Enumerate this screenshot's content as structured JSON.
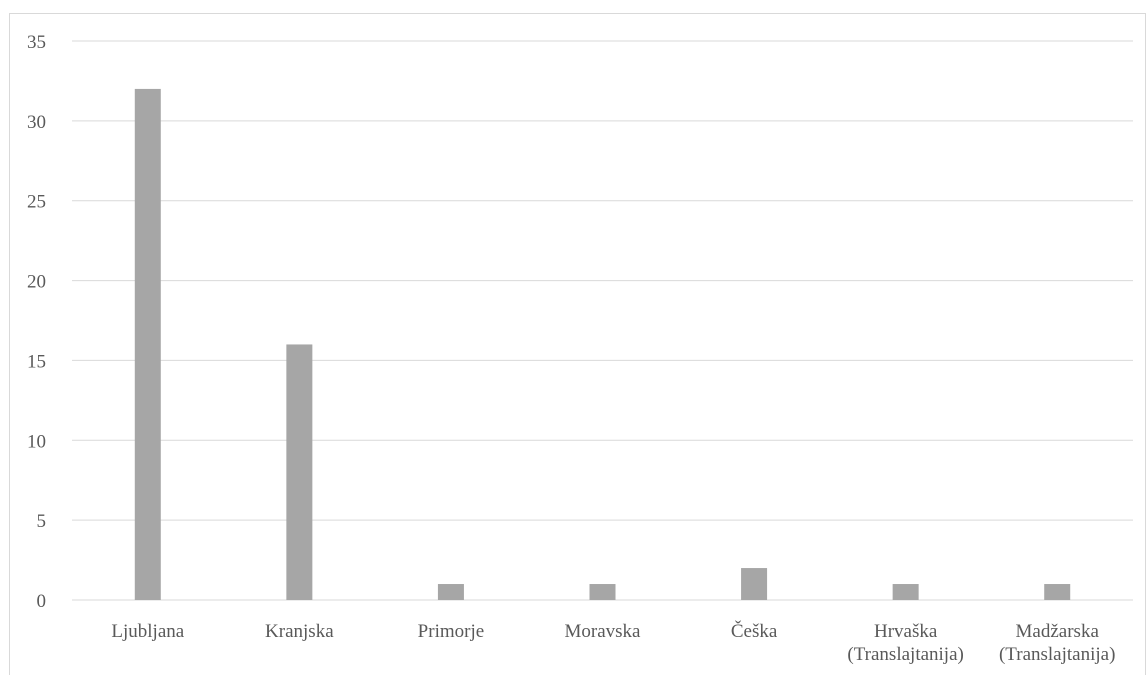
{
  "chart_data": {
    "type": "bar",
    "title": "",
    "xlabel": "",
    "ylabel": "",
    "categories": [
      [
        "Ljubljana"
      ],
      [
        "Kranjska"
      ],
      [
        "Primorje"
      ],
      [
        "Moravska"
      ],
      [
        "Češka"
      ],
      [
        "Hrvaška",
        "(Translajtanija)"
      ],
      [
        "Madžarska",
        "(Translajtanija)"
      ]
    ],
    "values": [
      32,
      16,
      1,
      1,
      2,
      1,
      1
    ],
    "ylim": [
      0,
      35
    ],
    "yticks": [
      "0",
      "5",
      "10",
      "15",
      "20",
      "25",
      "30",
      "35"
    ],
    "grid": true,
    "legend": "none",
    "colors": {
      "bar": "#a6a6a6",
      "grid": "#d9d9d9",
      "text": "#595959"
    }
  }
}
